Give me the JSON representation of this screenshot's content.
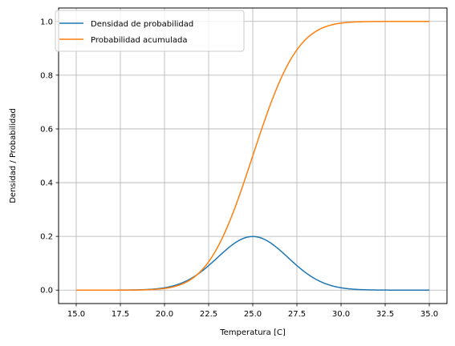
{
  "chart_data": {
    "type": "line",
    "title": "",
    "xlabel": "Temperatura [C]",
    "ylabel": "Densidad / Probabilidad",
    "xlim": [
      14.0,
      36.0
    ],
    "ylim": [
      -0.05,
      1.05
    ],
    "grid": true,
    "legend_position": "upper-left",
    "xticks": [
      "15.0",
      "17.5",
      "20.0",
      "22.5",
      "25.0",
      "27.5",
      "30.0",
      "32.5",
      "35.0"
    ],
    "yticks": [
      "0.0",
      "0.2",
      "0.4",
      "0.6",
      "0.8",
      "1.0"
    ],
    "distribution": {
      "family": "normal",
      "mean": 25,
      "std": 2
    },
    "x": [
      15,
      16,
      17,
      18,
      19,
      20,
      21,
      22,
      23,
      24,
      25,
      26,
      27,
      28,
      29,
      30,
      31,
      32,
      33,
      34,
      35
    ],
    "series": [
      {
        "name": "Densidad de probabilidad",
        "color": "#1f77b4",
        "values": [
          0.0,
          0.0,
          0.0001,
          0.0004,
          0.0022,
          0.0088,
          0.027,
          0.0648,
          0.121,
          0.176,
          0.1995,
          0.176,
          0.121,
          0.0648,
          0.027,
          0.0088,
          0.0022,
          0.0004,
          0.0001,
          0.0,
          0.0
        ]
      },
      {
        "name": "Probabilidad acumulada",
        "color": "#ff7f0e",
        "values": [
          0.0,
          0.0,
          0.0,
          0.0002,
          0.0013,
          0.0062,
          0.0228,
          0.0668,
          0.1587,
          0.3085,
          0.5,
          0.6915,
          0.8413,
          0.9332,
          0.9772,
          0.9938,
          0.9987,
          0.9998,
          1.0,
          1.0,
          1.0
        ]
      }
    ]
  }
}
